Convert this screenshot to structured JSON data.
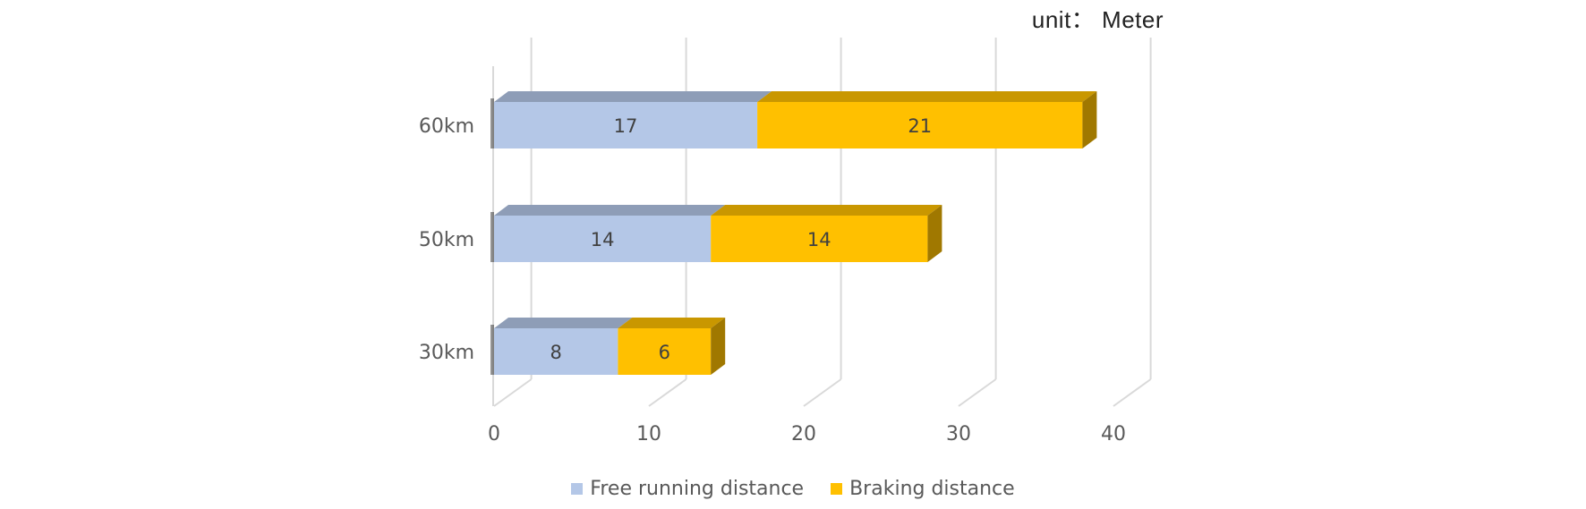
{
  "unit_note": "unit： Meter",
  "colors": {
    "free_running": "#B4C7E7",
    "free_running_top": "#8E9DB7",
    "braking": "#FFC000",
    "braking_top": "#C99700",
    "braking_side": "#A07800",
    "grid": "#D9D9D9",
    "text": "#595959"
  },
  "legend": [
    {
      "label": "Free running distance",
      "color": "#B4C7E7"
    },
    {
      "label": "Braking distance",
      "color": "#FFC000"
    }
  ],
  "chart_data": {
    "type": "bar",
    "orientation": "horizontal",
    "stacked": true,
    "three_d": true,
    "categories": [
      "30km",
      "50km",
      "60km"
    ],
    "series": [
      {
        "name": "Free running distance",
        "values": [
          8,
          14,
          17
        ]
      },
      {
        "name": "Braking distance",
        "values": [
          6,
          14,
          21
        ]
      }
    ],
    "xlim": [
      0,
      40
    ],
    "x_ticks": [
      "0",
      "10",
      "20",
      "30",
      "40"
    ],
    "grid": true,
    "legend_position": "bottom"
  }
}
